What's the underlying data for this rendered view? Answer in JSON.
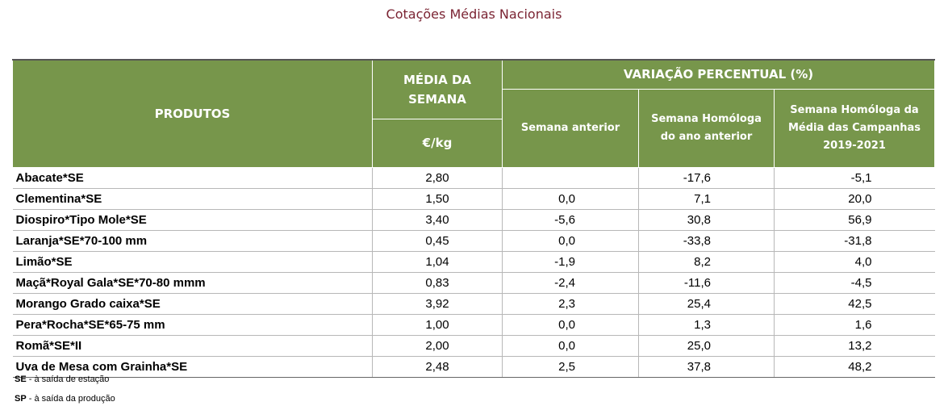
{
  "title": "Cotações Médias Nacionais",
  "headers": {
    "produtos": "PRODUTOS",
    "media": "MÉDIA DA SEMANA",
    "unit": "€/kg",
    "variacao": "VARIAÇÃO PERCENTUAL (%)",
    "semana_anterior": "Semana anterior",
    "homologa_ano": "Semana Homóloga do ano anterior",
    "homologa_campanhas": "Semana Homóloga da Média das Campanhas 2019-2021"
  },
  "rows": [
    {
      "produto": "Abacate*SE",
      "media": "2,80",
      "anterior": "",
      "homologa": "-17,6",
      "campanhas": "-5,1"
    },
    {
      "produto": "Clementina*SE",
      "media": "1,50",
      "anterior": "0,0",
      "homologa": "7,1",
      "campanhas": "20,0"
    },
    {
      "produto": "Diospiro*Tipo Mole*SE",
      "media": "3,40",
      "anterior": "-5,6",
      "homologa": "30,8",
      "campanhas": "56,9"
    },
    {
      "produto": "Laranja*SE*70-100 mm",
      "media": "0,45",
      "anterior": "0,0",
      "homologa": "-33,8",
      "campanhas": "-31,8"
    },
    {
      "produto": "Limão*SE",
      "media": "1,04",
      "anterior": "-1,9",
      "homologa": "8,2",
      "campanhas": "4,0"
    },
    {
      "produto": "Maçã*Royal Gala*SE*70-80 mmm",
      "media": "0,83",
      "anterior": "-2,4",
      "homologa": "-11,6",
      "campanhas": "-4,5"
    },
    {
      "produto": "Morango Grado caixa*SE",
      "media": "3,92",
      "anterior": "2,3",
      "homologa": "25,4",
      "campanhas": "42,5"
    },
    {
      "produto": "Pera*Rocha*SE*65-75 mm",
      "media": "1,00",
      "anterior": "0,0",
      "homologa": "1,3",
      "campanhas": "1,6"
    },
    {
      "produto": "Romã*SE*II",
      "media": "2,00",
      "anterior": "0,0",
      "homologa": "25,0",
      "campanhas": "13,2"
    },
    {
      "produto": "Uva de Mesa com Grainha*SE",
      "media": "2,48",
      "anterior": "2,5",
      "homologa": "37,8",
      "campanhas": "48,2"
    }
  ],
  "footnotes": [
    {
      "code": "SE",
      "text": " - à saída de estação"
    },
    {
      "code": "SP",
      "text": " - à saída da produção"
    }
  ]
}
